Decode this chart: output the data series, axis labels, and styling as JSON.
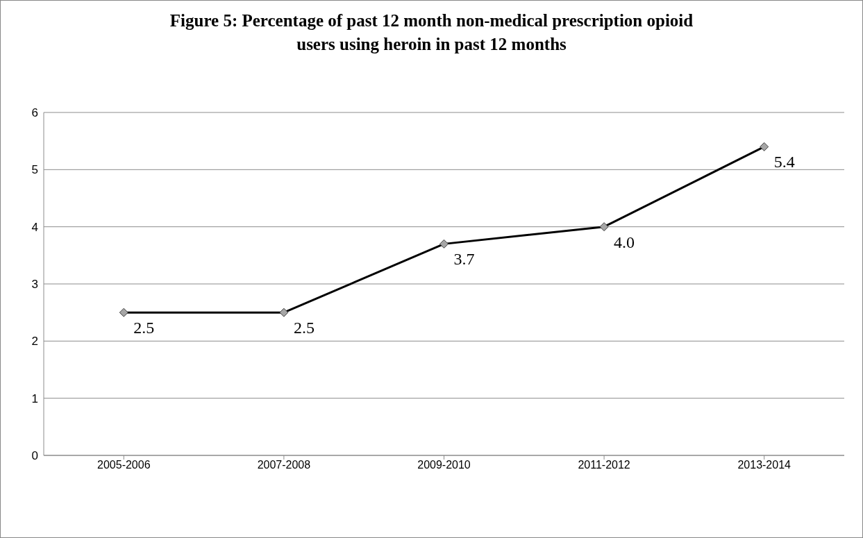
{
  "chart_data": {
    "type": "line",
    "title": "Figure 5: Percentage of past 12 month non-medical prescription opioid users using heroin in past 12 months",
    "categories": [
      "2005-2006",
      "2007-2008",
      "2009-2010",
      "2011-2012",
      "2013-2014"
    ],
    "series": [
      {
        "color": "#000000",
        "values": [
          2.5,
          2.5,
          3.7,
          4.0,
          5.4
        ],
        "value_labels": [
          "2.5",
          "2.5",
          "3.7",
          "4.0",
          "5.4"
        ]
      }
    ],
    "ylim": [
      0,
      6
    ],
    "yticks": [
      0,
      1,
      2,
      3,
      4,
      5,
      6
    ],
    "grid": "y",
    "marker": "diamond",
    "line_style": "solid"
  }
}
